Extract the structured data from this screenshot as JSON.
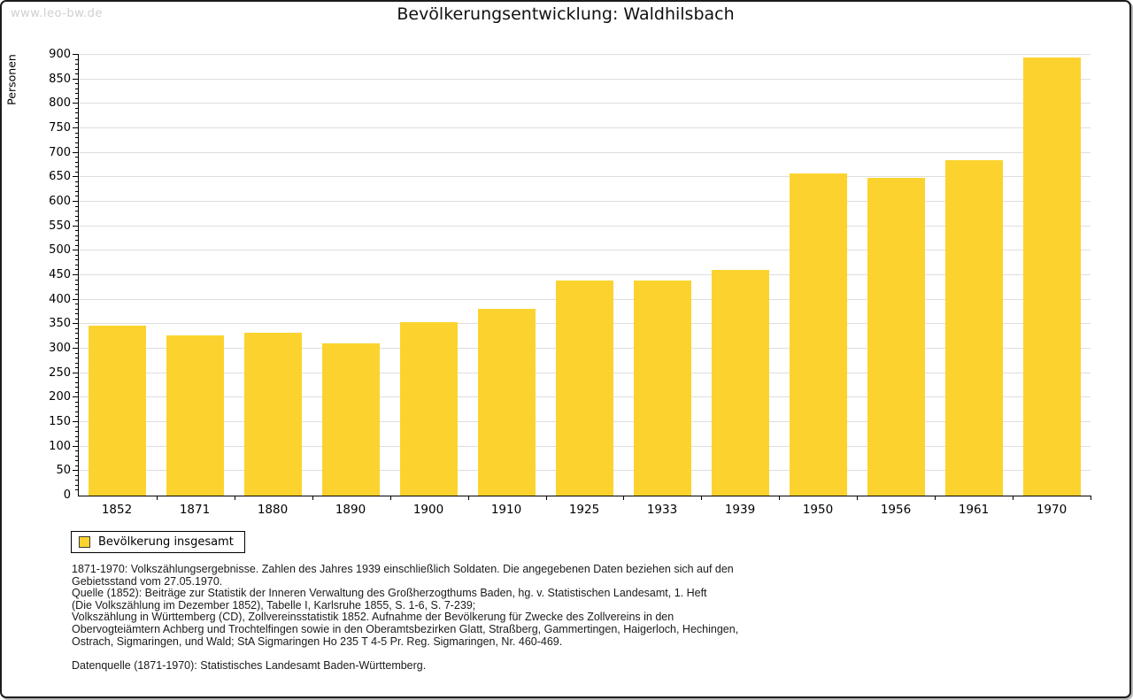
{
  "page": {
    "watermark": "www.leo-bw.de",
    "title": "Bevölkerungsentwicklung: Waldhilsbach"
  },
  "chart_data": {
    "type": "bar",
    "title": "Bevölkerungsentwicklung: Waldhilsbach",
    "xlabel": "",
    "ylabel": "Personen",
    "categories": [
      "1852",
      "1871",
      "1880",
      "1890",
      "1900",
      "1910",
      "1925",
      "1933",
      "1939",
      "1950",
      "1956",
      "1961",
      "1970"
    ],
    "values": [
      347,
      328,
      333,
      310,
      355,
      382,
      440,
      440,
      460,
      658,
      649,
      685,
      895
    ],
    "ylim": [
      0,
      900
    ],
    "ytick_major_step": 50,
    "ytick_minor_step": 10,
    "grid": "horizontal major gridlines",
    "legend_position": "bottom-left",
    "series_name": "Bevölkerung insgesamt",
    "bar_color": "#FCD32E",
    "gridline_color": "#dedede"
  },
  "legend": {
    "label": "Bevölkerung insgesamt",
    "swatch_color": "#FCD32E"
  },
  "footer": {
    "lines": [
      "1871-1970: Volkszählungsergebnisse. Zahlen des Jahres 1939 einschließlich Soldaten. Die angegebenen Daten beziehen sich auf den",
      "Gebietsstand vom 27.05.1970.",
      "Quelle (1852): Beiträge zur Statistik der Inneren Verwaltung des Großherzogthums Baden, hg. v. Statistischen Landesamt, 1. Heft",
      "(Die Volkszählung im Dezember 1852), Tabelle I, Karlsruhe 1855, S. 1-6, S. 7-239;",
      "Volkszählung in Württemberg (CD), Zollvereinsstatistik 1852. Aufnahme der Bevölkerung für Zwecke des Zollvereins in den",
      "Obervogteiämtern Achberg und Trochtelfingen sowie in den Oberamtsbezirken Glatt, Straßberg, Gammertingen, Haigerloch, Hechingen,",
      "Ostrach, Sigmaringen, und Wald; StA Sigmaringen Ho 235 T 4-5 Pr. Reg. Sigmaringen, Nr. 460-469."
    ],
    "datasource": "Datenquelle (1871-1970): Statistisches Landesamt Baden-Württemberg."
  }
}
